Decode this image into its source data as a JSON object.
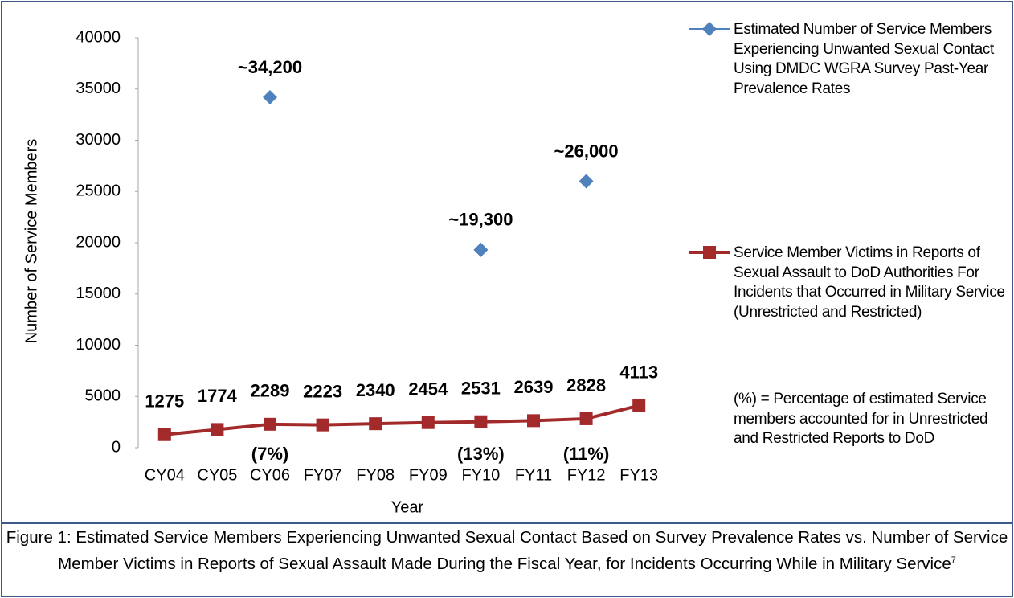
{
  "chart_data": {
    "type": "line",
    "y_label": "Number of Service Members",
    "x_label": "Year",
    "categories": [
      "CY04",
      "CY05",
      "CY06",
      "FY07",
      "FY08",
      "FY09",
      "FY10",
      "FY11",
      "FY12",
      "FY13"
    ],
    "series": [
      {
        "name": "Estimated Number of Service Members Experiencing Unwanted Sexual Contact Using DMDC WGRA Survey Past-Year Prevalence Rates",
        "color": "#4f81bd",
        "marker": "diamond",
        "show_line": false,
        "values": [
          null,
          null,
          34200,
          null,
          null,
          null,
          19300,
          null,
          26000,
          null
        ],
        "value_labels": [
          null,
          null,
          "~34,200",
          null,
          null,
          null,
          "~19,300",
          null,
          "~26,000",
          null
        ]
      },
      {
        "name": "Service Member Victims in Reports of Sexual Assault to DoD Authorities For Incidents that Occurred in Military Service (Unrestricted and Restricted)",
        "color": "#a32a2a",
        "marker": "square",
        "show_line": true,
        "values": [
          1275,
          1774,
          2289,
          2223,
          2340,
          2454,
          2531,
          2639,
          2828,
          4113
        ]
      }
    ],
    "annotations": [
      {
        "text": "(7%)",
        "category": "CY06"
      },
      {
        "text": "(13%)",
        "category": "FY10"
      },
      {
        "text": "(11%)",
        "category": "FY12"
      }
    ],
    "note": "(%) = Percentage of estimated Service members accounted for in Unrestricted and Restricted Reports to DoD",
    "ylim": [
      0,
      40000
    ],
    "yticks": [
      0,
      5000,
      10000,
      15000,
      20000,
      25000,
      30000,
      35000,
      40000
    ],
    "grid": false,
    "legend": "right"
  },
  "caption": {
    "text": "Figure 1: Estimated Service Members Experiencing Unwanted Sexual Contact Based on Survey Prevalence Rates vs. Number of Service Member Victims in Reports of Sexual Assault Made During the Fiscal Year, for Incidents Occurring While in Military Service",
    "footnote_mark": "7"
  }
}
